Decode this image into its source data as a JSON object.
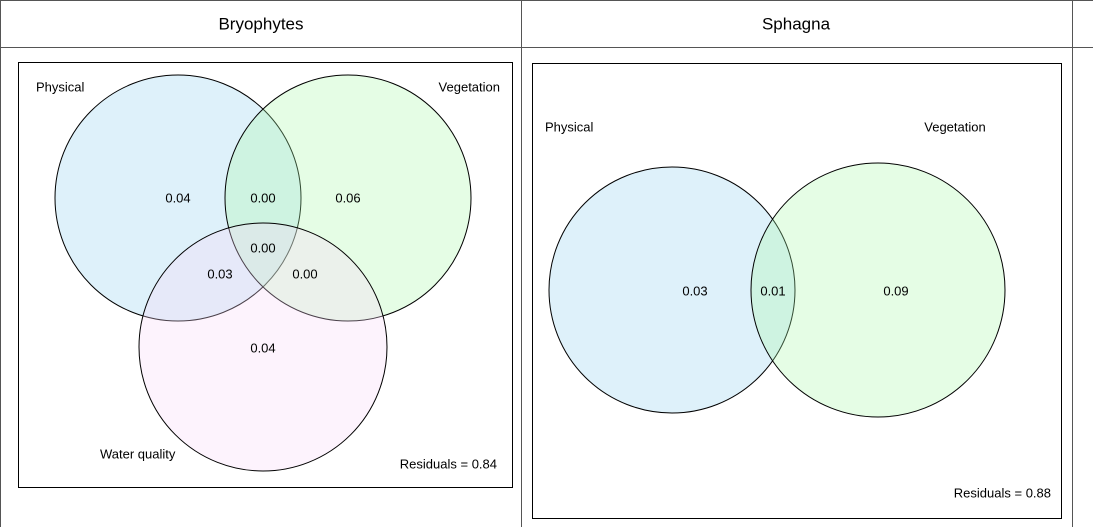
{
  "table": {
    "headers": [
      "Bryophytes",
      "Sphagna"
    ],
    "cells": [
      {
        "set_labels": [
          "Physical",
          "Vegetation",
          "Water quality"
        ],
        "regions": [
          "0.04",
          "0.00",
          "0.06",
          "0.00",
          "0.03",
          "0.00",
          "0.04"
        ],
        "residuals": "Residuals = 0.84"
      },
      {
        "set_labels": [
          "Physical",
          "Vegetation"
        ],
        "regions": [
          "0.03",
          "0.01",
          "0.09"
        ],
        "residuals": "Residuals = 0.88"
      }
    ]
  }
}
